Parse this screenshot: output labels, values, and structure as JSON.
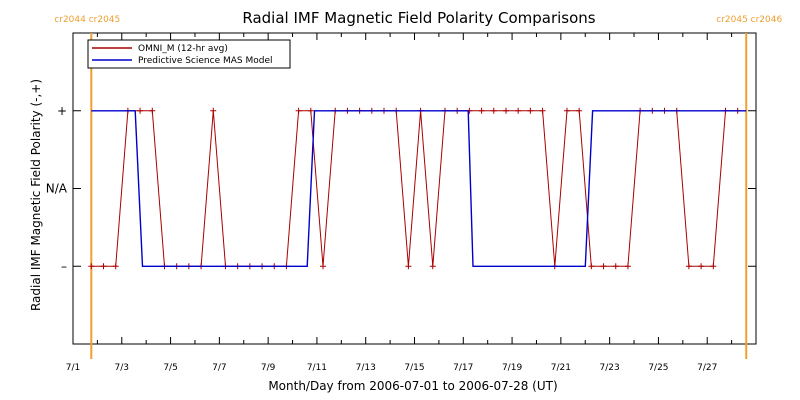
{
  "chart_data": {
    "type": "line",
    "title": "Radial IMF Magnetic Field Polarity Comparisons",
    "xlabel": "Month/Day from 2006-07-01 to 2006-07-28 (UT)",
    "ylabel": "Radial IMF Magnetic Field Polarity (-,+)",
    "xlim": [
      0,
      28
    ],
    "ylim": [
      -2,
      2
    ],
    "x_ticks": [
      {
        "value": 0,
        "label": "7/1"
      },
      {
        "value": 2,
        "label": "7/3"
      },
      {
        "value": 4,
        "label": "7/5"
      },
      {
        "value": 6,
        "label": "7/7"
      },
      {
        "value": 8,
        "label": "7/9"
      },
      {
        "value": 10,
        "label": "7/11"
      },
      {
        "value": 12,
        "label": "7/13"
      },
      {
        "value": 14,
        "label": "7/15"
      },
      {
        "value": 16,
        "label": "7/17"
      },
      {
        "value": 18,
        "label": "7/19"
      },
      {
        "value": 20,
        "label": "7/21"
      },
      {
        "value": 22,
        "label": "7/23"
      },
      {
        "value": 24,
        "label": "7/25"
      },
      {
        "value": 26,
        "label": "7/27"
      }
    ],
    "y_ticks": [
      {
        "value": 1,
        "label": "+"
      },
      {
        "value": 0,
        "label": "N/A"
      },
      {
        "value": -1,
        "label": "–"
      }
    ],
    "carrington_markers": [
      {
        "x": 0.75,
        "label": "cr2044 cr2045"
      },
      {
        "x": 27.6,
        "label": "cr2045 cr2046"
      }
    ],
    "legend_position": "top-left",
    "series": [
      {
        "name": "OMNI_M (12-hr avg)",
        "color": "#aa0000",
        "markers": true,
        "points": [
          [
            0.75,
            -1
          ],
          [
            1.25,
            -1
          ],
          [
            1.75,
            -1
          ],
          [
            2.25,
            1
          ],
          [
            2.75,
            1
          ],
          [
            3.25,
            1
          ],
          [
            3.75,
            -1
          ],
          [
            4.25,
            -1
          ],
          [
            4.75,
            -1
          ],
          [
            5.25,
            -1
          ],
          [
            5.75,
            1
          ],
          [
            6.25,
            -1
          ],
          [
            6.75,
            -1
          ],
          [
            7.25,
            -1
          ],
          [
            7.75,
            -1
          ],
          [
            8.25,
            -1
          ],
          [
            8.75,
            -1
          ],
          [
            9.25,
            1
          ],
          [
            9.75,
            1
          ],
          [
            10.25,
            -1
          ],
          [
            10.75,
            1
          ],
          [
            11.25,
            1
          ],
          [
            11.75,
            1
          ],
          [
            12.25,
            1
          ],
          [
            12.75,
            1
          ],
          [
            13.25,
            1
          ],
          [
            13.75,
            -1
          ],
          [
            14.25,
            1
          ],
          [
            14.75,
            -1
          ],
          [
            15.25,
            1
          ],
          [
            15.75,
            1
          ],
          [
            16.25,
            1
          ],
          [
            16.75,
            1
          ],
          [
            17.25,
            1
          ],
          [
            17.75,
            1
          ],
          [
            18.25,
            1
          ],
          [
            18.75,
            1
          ],
          [
            19.25,
            1
          ],
          [
            19.75,
            -1
          ],
          [
            20.25,
            1
          ],
          [
            20.75,
            1
          ],
          [
            21.25,
            -1
          ],
          [
            21.75,
            -1
          ],
          [
            22.25,
            -1
          ],
          [
            22.75,
            -1
          ],
          [
            23.25,
            1
          ],
          [
            23.75,
            1
          ],
          [
            24.25,
            1
          ],
          [
            24.75,
            1
          ],
          [
            25.25,
            -1
          ],
          [
            25.75,
            -1
          ],
          [
            26.25,
            -1
          ],
          [
            26.75,
            1
          ],
          [
            27.25,
            1
          ]
        ]
      },
      {
        "name": "Predictive Science MAS Model",
        "color": "#0000cc",
        "markers": false,
        "points": [
          [
            0.75,
            1
          ],
          [
            2.55,
            1
          ],
          [
            2.85,
            -1
          ],
          [
            9.6,
            -1
          ],
          [
            9.9,
            1
          ],
          [
            16.2,
            1
          ],
          [
            16.4,
            -1
          ],
          [
            21.0,
            -1
          ],
          [
            21.3,
            1
          ],
          [
            27.6,
            1
          ]
        ]
      }
    ]
  }
}
